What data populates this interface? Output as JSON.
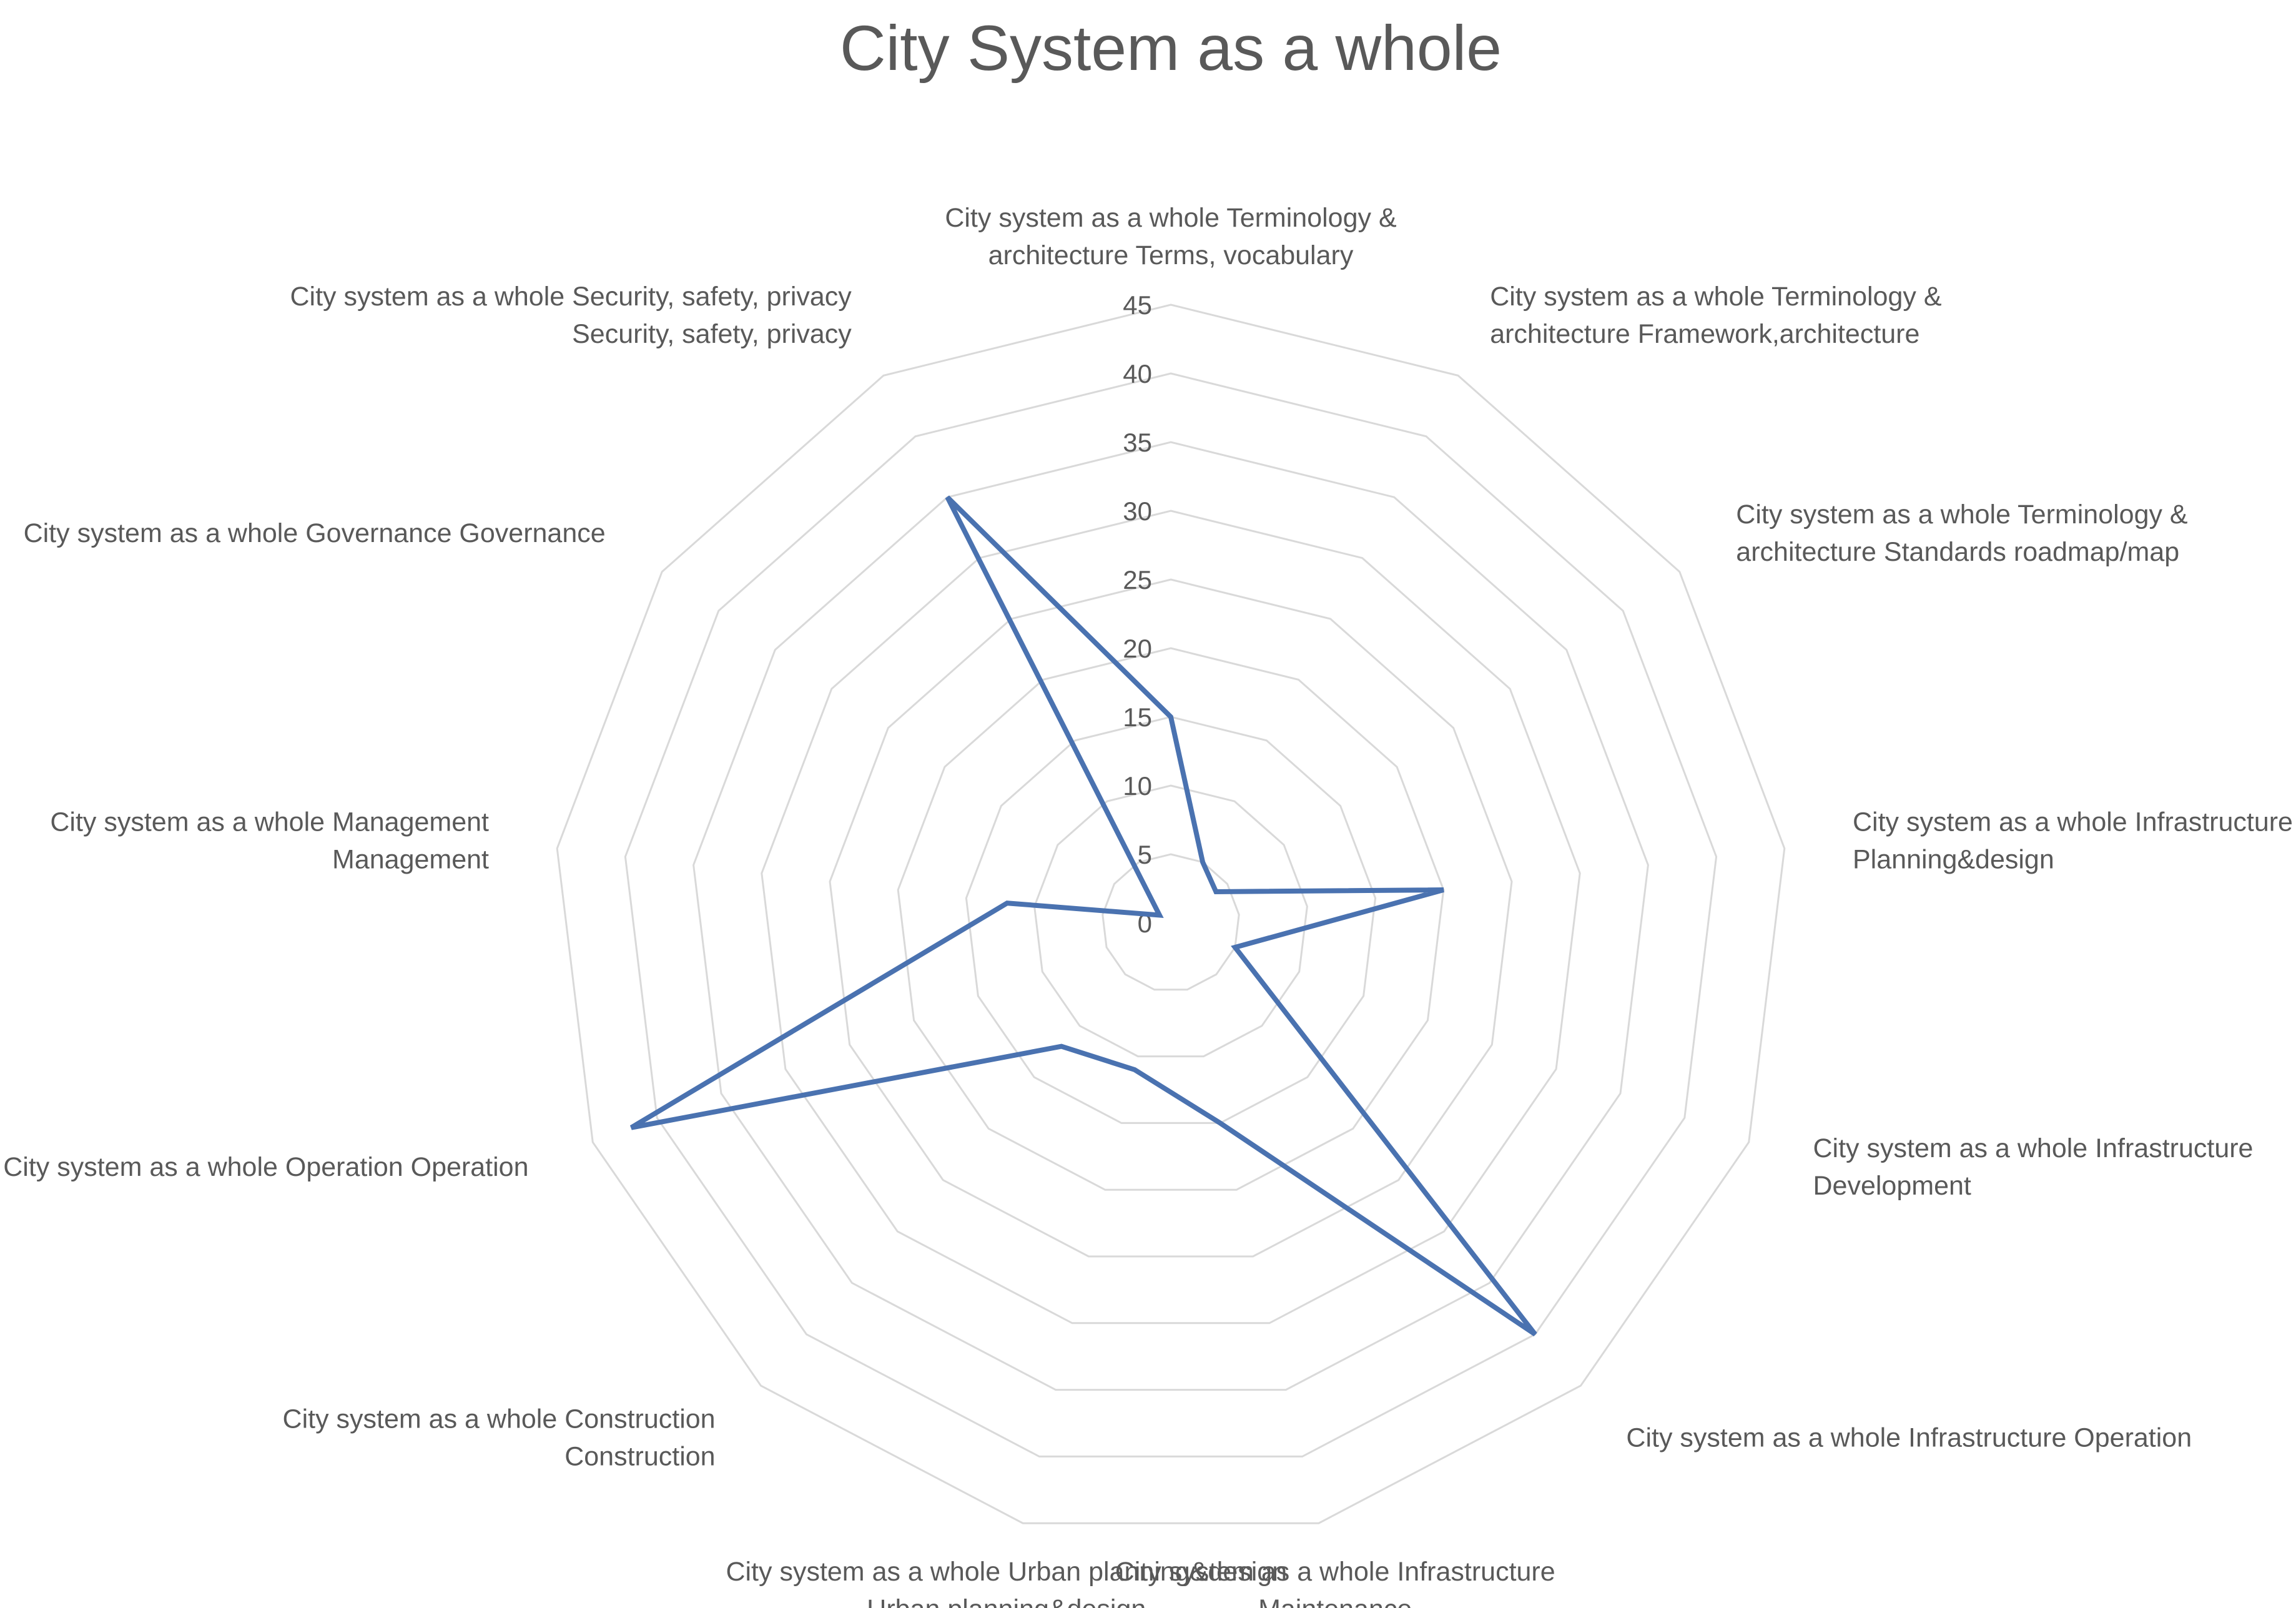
{
  "chart_data": {
    "type": "radar",
    "title": "City System as a whole",
    "categories": [
      [
        "City system as a whole Terminology &",
        "architecture Terms, vocabulary"
      ],
      [
        "City system as a whole Terminology &",
        "architecture Framework,architecture"
      ],
      [
        "City system as a whole Terminology &",
        "architecture  Standards roadmap/map"
      ],
      [
        "City system as a whole Infrastructure",
        "Planning&design"
      ],
      [
        "City system as a whole Infrastructure",
        "Development"
      ],
      [
        "City system as a whole Infrastructure Operation"
      ],
      [
        "City system as a whole Infrastructure",
        "Maintenance"
      ],
      [
        "City system as a whole Urban planning&design",
        "Urban planning&design"
      ],
      [
        "City system as a whole Construction",
        "Construction"
      ],
      [
        "City system as a whole Operation Operation"
      ],
      [
        "City system as a whole Management",
        "Management"
      ],
      [
        "City system as a whole Governance Governance"
      ],
      [
        "City system as a whole Security,    safety, privacy",
        "Security,    safety, privacy"
      ]
    ],
    "values": [
      15,
      5,
      4,
      20,
      5,
      40,
      15,
      11,
      12,
      42,
      12,
      1,
      35
    ],
    "rlim": [
      0,
      45
    ],
    "ticks": [
      "0",
      "5",
      "10",
      "15",
      "20",
      "25",
      "30",
      "35",
      "40",
      "45"
    ],
    "grid": true,
    "legend": "none",
    "line_color": "#4A72B0",
    "grid_color": "#D9D9D9"
  }
}
